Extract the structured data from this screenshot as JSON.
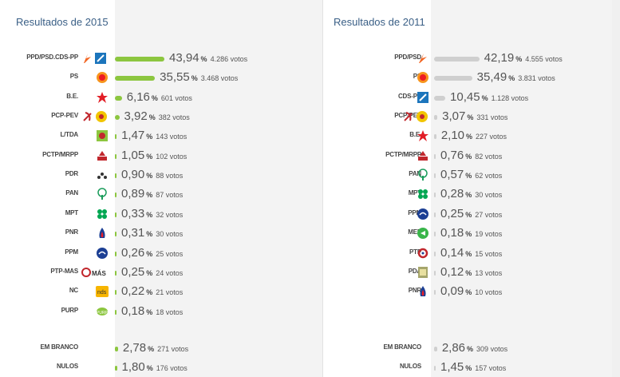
{
  "colors": {
    "bar2015": "#8cc63f",
    "bar2011": "#cfcfcf",
    "title": "#3a5f86"
  },
  "left": {
    "title": "Resultados de 2015",
    "rows": [
      {
        "party": "PPD/PSD.CDS-PP",
        "logo": "psd-cds-logo-icon",
        "pct": "43,94",
        "pct_value": 43.94,
        "votes": "4.286 votos"
      },
      {
        "party": "PS",
        "logo": "ps-logo-icon",
        "pct": "35,55",
        "pct_value": 35.55,
        "votes": "3.468 votos"
      },
      {
        "party": "B.E.",
        "logo": "be-star-icon",
        "pct": "6,16",
        "pct_value": 6.16,
        "votes": "601 votos"
      },
      {
        "party": "PCP-PEV",
        "logo": "pcp-pev-logo-icon",
        "pct": "3,92",
        "pct_value": 3.92,
        "votes": "382 votos"
      },
      {
        "party": "L/TDA",
        "logo": "livre-logo-icon",
        "pct": "1,47",
        "pct_value": 1.47,
        "votes": "143 votos"
      },
      {
        "party": "PCTP/MRPP",
        "logo": "pctp-logo-icon",
        "pct": "1,05",
        "pct_value": 1.05,
        "votes": "102 votos"
      },
      {
        "party": "PDR",
        "logo": "pdr-logo-icon",
        "pct": "0,90",
        "pct_value": 0.9,
        "votes": "88 votos"
      },
      {
        "party": "PAN",
        "logo": "pan-tree-icon",
        "pct": "0,89",
        "pct_value": 0.89,
        "votes": "87 votos"
      },
      {
        "party": "MPT",
        "logo": "mpt-clover-icon",
        "pct": "0,33",
        "pct_value": 0.33,
        "votes": "32 votos"
      },
      {
        "party": "PNR",
        "logo": "pnr-flame-icon",
        "pct": "0,31",
        "pct_value": 0.31,
        "votes": "30 votos"
      },
      {
        "party": "PPM",
        "logo": "ppm-logo-icon",
        "pct": "0,26",
        "pct_value": 0.26,
        "votes": "25 votos"
      },
      {
        "party": "PTP-MAS",
        "logo": "ptp-mas-logo-icon",
        "pct": "0,25",
        "pct_value": 0.25,
        "votes": "24 votos"
      },
      {
        "party": "NC",
        "logo": "nc-logo-icon",
        "pct": "0,22",
        "pct_value": 0.22,
        "votes": "21 votos"
      },
      {
        "party": "PURP",
        "logo": "purp-logo-icon",
        "pct": "0,18",
        "pct_value": 0.18,
        "votes": "18 votos"
      },
      {
        "party": "EM BRANCO",
        "logo": "",
        "pct": "2,78",
        "pct_value": 2.78,
        "votes": "271 votos"
      },
      {
        "party": "NULOS",
        "logo": "",
        "pct": "1,80",
        "pct_value": 1.8,
        "votes": "176 votos"
      }
    ],
    "logo_texts": {
      "nc": "nds",
      "ptp_mas": "MÁS",
      "purp": "PURP"
    }
  },
  "right": {
    "title": "Resultados de 2011",
    "rows": [
      {
        "party": "PPD/PSD",
        "logo": "psd-logo-icon",
        "pct": "42,19",
        "pct_value": 42.19,
        "votes": "4.555 votos"
      },
      {
        "party": "PS",
        "logo": "ps-logo-icon",
        "pct": "35,49",
        "pct_value": 35.49,
        "votes": "3.831 votos"
      },
      {
        "party": "CDS-PP",
        "logo": "cds-logo-icon",
        "pct": "10,45",
        "pct_value": 10.45,
        "votes": "1.128 votos"
      },
      {
        "party": "PCP-PEV",
        "logo": "pcp-pev-logo-icon",
        "pct": "3,07",
        "pct_value": 3.07,
        "votes": "331 votos"
      },
      {
        "party": "B.E.",
        "logo": "be-star-icon",
        "pct": "2,10",
        "pct_value": 2.1,
        "votes": "227 votos"
      },
      {
        "party": "PCTP/MRPP",
        "logo": "pctp-logo-icon",
        "pct": "0,76",
        "pct_value": 0.76,
        "votes": "82 votos"
      },
      {
        "party": "PAN",
        "logo": "pan-tree-icon",
        "pct": "0,57",
        "pct_value": 0.57,
        "votes": "62 votos"
      },
      {
        "party": "MPT",
        "logo": "mpt-clover-icon",
        "pct": "0,28",
        "pct_value": 0.28,
        "votes": "30 votos"
      },
      {
        "party": "PPM",
        "logo": "ppm-logo-icon",
        "pct": "0,25",
        "pct_value": 0.25,
        "votes": "27 votos"
      },
      {
        "party": "MEP",
        "logo": "mep-logo-icon",
        "pct": "0,18",
        "pct_value": 0.18,
        "votes": "19 votos"
      },
      {
        "party": "PTP",
        "logo": "ptp-logo-icon",
        "pct": "0,14",
        "pct_value": 0.14,
        "votes": "15 votos"
      },
      {
        "party": "PDA",
        "logo": "pda-logo-icon",
        "pct": "0,12",
        "pct_value": 0.12,
        "votes": "13 votos"
      },
      {
        "party": "PNR",
        "logo": "pnr-flame-icon",
        "pct": "0,09",
        "pct_value": 0.09,
        "votes": "10 votos"
      },
      {
        "party": "EM BRANCO",
        "logo": "",
        "pct": "2,86",
        "pct_value": 2.86,
        "votes": "309 votos"
      },
      {
        "party": "NULOS",
        "logo": "",
        "pct": "1,45",
        "pct_value": 1.45,
        "votes": "157 votos"
      }
    ]
  },
  "pct_symbol": "%"
}
